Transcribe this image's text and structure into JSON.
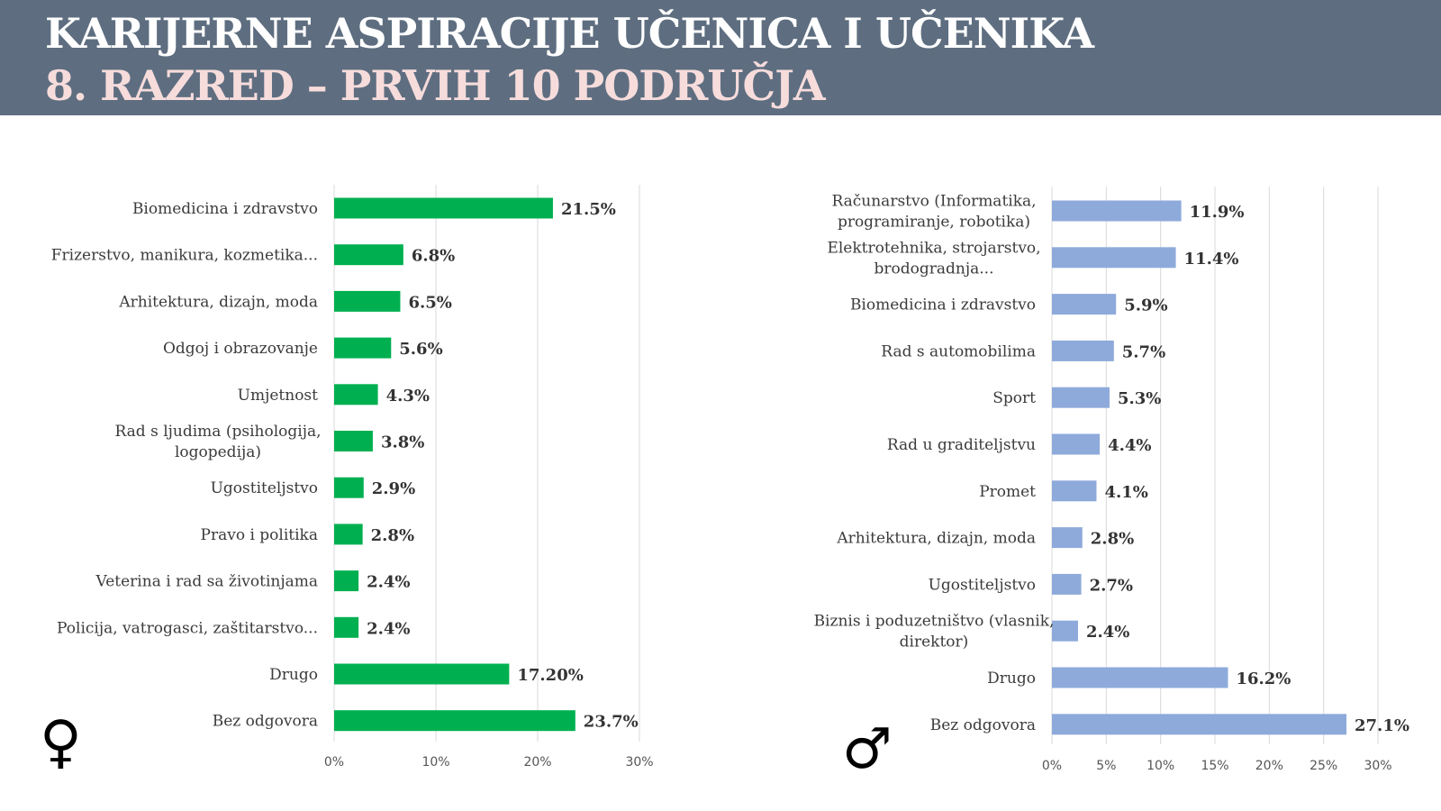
{
  "header": {
    "title_line1": "KARIJERNE ASPIRACIJE UČENICA I UČENIKA",
    "title_line2": "8. RAZRED – PRVIH 10 PODRUČJA"
  },
  "symbols": {
    "female": "♀",
    "male": "♂"
  },
  "colors": {
    "header_bg": "#5e6e80",
    "female_bar": "#00b050",
    "male_bar": "#8eaadb"
  },
  "chart_data": [
    {
      "type": "bar",
      "orientation": "horizontal",
      "name": "female",
      "categories": [
        [
          "Biomedicina i zdravstvo"
        ],
        [
          "Frizerstvo, manikura, kozmetika..."
        ],
        [
          "Arhitektura, dizajn, moda"
        ],
        [
          "Odgoj i obrazovanje"
        ],
        [
          "Umjetnost"
        ],
        [
          "Rad s ljudima (psihologija,",
          "logopedija)"
        ],
        [
          "Ugostiteljstvo"
        ],
        [
          "Pravo i politika"
        ],
        [
          "Veterina i rad sa životinjama"
        ],
        [
          "Policija, vatrogasci, zaštitarstvo..."
        ],
        [
          "Drugo"
        ],
        [
          "Bez odgovora"
        ]
      ],
      "values": [
        21.5,
        6.8,
        6.5,
        5.6,
        4.3,
        3.8,
        2.9,
        2.8,
        2.4,
        2.4,
        17.2,
        23.7
      ],
      "value_labels": [
        "21.5%",
        "6.8%",
        "6.5%",
        "5.6%",
        "4.3%",
        "3.8%",
        "2.9%",
        "2.8%",
        "2.4%",
        "2.4%",
        "17.20%",
        "23.7%"
      ],
      "xlim": [
        0,
        30
      ],
      "ticks": [
        0,
        10,
        20,
        30
      ],
      "tick_labels": [
        "0%",
        "10%",
        "20%",
        "30%"
      ],
      "color": "#00b050",
      "grid": true
    },
    {
      "type": "bar",
      "orientation": "horizontal",
      "name": "male",
      "categories": [
        [
          "Računarstvo (Informatika,",
          "programiranje, robotika)"
        ],
        [
          "Elektrotehnika, strojarstvo,",
          "brodogradnja..."
        ],
        [
          "Biomedicina i zdravstvo"
        ],
        [
          "Rad s automobilima"
        ],
        [
          "Sport"
        ],
        [
          "Rad u graditeljstvu"
        ],
        [
          "Promet"
        ],
        [
          "Arhitektura, dizajn, moda"
        ],
        [
          "Ugostiteljstvo"
        ],
        [
          "Biznis i poduzetništvo (vlasnik,",
          "direktor)"
        ],
        [
          "Drugo"
        ],
        [
          "Bez odgovora"
        ]
      ],
      "values": [
        11.9,
        11.4,
        5.9,
        5.7,
        5.3,
        4.4,
        4.1,
        2.8,
        2.7,
        2.4,
        16.2,
        27.1
      ],
      "value_labels": [
        "11.9%",
        "11.4%",
        "5.9%",
        "5.7%",
        "5.3%",
        "4.4%",
        "4.1%",
        "2.8%",
        "2.7%",
        "2.4%",
        "16.2%",
        "27.1%"
      ],
      "xlim": [
        0,
        30
      ],
      "ticks": [
        0,
        5,
        10,
        15,
        20,
        25,
        30
      ],
      "tick_labels": [
        "0%",
        "5%",
        "10%",
        "15%",
        "20%",
        "25%",
        "30%"
      ],
      "color": "#8eaadb",
      "grid": true
    }
  ]
}
